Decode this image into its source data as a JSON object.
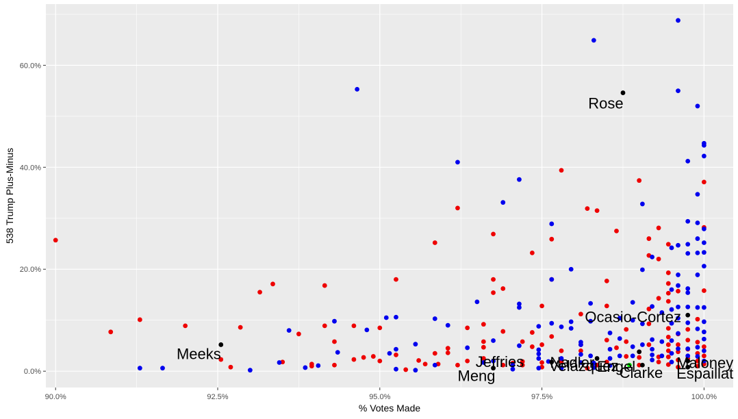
{
  "chart_data": {
    "type": "scatter",
    "xlabel": "% Votes Made",
    "ylabel": "538 Trump Plus-Minus",
    "xlim": [
      0.8985,
      1.0045
    ],
    "ylim": [
      -0.032,
      0.72
    ],
    "x_ticks": [
      0.9,
      0.925,
      0.95,
      0.975,
      1.0
    ],
    "x_tick_labels": [
      "90.0%",
      "92.5%",
      "95.0%",
      "97.5%",
      "100.0%"
    ],
    "y_ticks": [
      0.0,
      0.2,
      0.4,
      0.6
    ],
    "y_tick_labels": [
      "0.0%",
      "20.0%",
      "40.0%",
      "60.0%"
    ],
    "grid": true,
    "colors": {
      "panel": "#ebebeb",
      "grid": "#ffffff",
      "red": "#ee0000",
      "blue": "#0000ee",
      "black": "#000000",
      "green": "#00ee00"
    },
    "series": [
      {
        "color": "red",
        "points": [
          [
            0.9,
            0.257
          ],
          [
            0.9085,
            0.077
          ],
          [
            0.913,
            0.101
          ],
          [
            0.92,
            0.089
          ],
          [
            0.9255,
            0.023
          ],
          [
            0.927,
            0.008
          ],
          [
            0.9285,
            0.086
          ],
          [
            0.9315,
            0.155
          ],
          [
            0.9335,
            0.171
          ],
          [
            0.935,
            0.018
          ],
          [
            0.9375,
            0.073
          ],
          [
            0.9395,
            0.014
          ],
          [
            0.9395,
            0.01
          ],
          [
            0.9415,
            0.168
          ],
          [
            0.9415,
            0.089
          ],
          [
            0.943,
            0.058
          ],
          [
            0.943,
            0.012
          ],
          [
            0.946,
            0.089
          ],
          [
            0.946,
            0.023
          ],
          [
            0.9475,
            0.027
          ],
          [
            0.949,
            0.029
          ],
          [
            0.95,
            0.085
          ],
          [
            0.95,
            0.02
          ],
          [
            0.9525,
            0.18
          ],
          [
            0.9525,
            0.032
          ],
          [
            0.954,
            0.003
          ],
          [
            0.956,
            0.021
          ],
          [
            0.957,
            0.014
          ],
          [
            0.9585,
            0.252
          ],
          [
            0.9585,
            0.035
          ],
          [
            0.959,
            0.014
          ],
          [
            0.9605,
            0.045
          ],
          [
            0.9605,
            0.036
          ],
          [
            0.962,
            0.32
          ],
          [
            0.962,
            0.012
          ],
          [
            0.9635,
            0.085
          ],
          [
            0.9635,
            0.02
          ],
          [
            0.966,
            0.058
          ],
          [
            0.966,
            0.047
          ],
          [
            0.966,
            0.025
          ],
          [
            0.966,
            0.092
          ],
          [
            0.9675,
            0.269
          ],
          [
            0.9675,
            0.18
          ],
          [
            0.9675,
            0.154
          ],
          [
            0.969,
            0.162
          ],
          [
            0.969,
            0.078
          ],
          [
            0.969,
            0.012
          ],
          [
            0.9705,
            0.016
          ],
          [
            0.972,
            0.058
          ],
          [
            0.972,
            0.019
          ],
          [
            0.972,
            0.012
          ],
          [
            0.9735,
            0.232
          ],
          [
            0.9735,
            0.076
          ],
          [
            0.9735,
            0.048
          ],
          [
            0.975,
            0.128
          ],
          [
            0.975,
            0.052
          ],
          [
            0.975,
            0.017
          ],
          [
            0.975,
            0.008
          ],
          [
            0.9765,
            0.259
          ],
          [
            0.9765,
            0.18
          ],
          [
            0.9765,
            0.068
          ],
          [
            0.978,
            0.394
          ],
          [
            0.978,
            0.04
          ],
          [
            0.978,
            0.019
          ],
          [
            0.981,
            0.112
          ],
          [
            0.981,
            0.052
          ],
          [
            0.981,
            0.04
          ],
          [
            0.982,
            0.319
          ],
          [
            0.982,
            0.006
          ],
          [
            0.9835,
            0.315
          ],
          [
            0.9835,
            0.012
          ],
          [
            0.985,
            0.177
          ],
          [
            0.985,
            0.128
          ],
          [
            0.985,
            0.061
          ],
          [
            0.985,
            0.018
          ],
          [
            0.9865,
            0.275
          ],
          [
            0.9865,
            0.046
          ],
          [
            0.988,
            0.082
          ],
          [
            0.988,
            0.058
          ],
          [
            0.988,
            0.029
          ],
          [
            0.99,
            0.374
          ],
          [
            0.99,
            0.038
          ],
          [
            0.99,
            0.027
          ],
          [
            0.99,
            0.012
          ],
          [
            0.9915,
            0.26
          ],
          [
            0.9915,
            0.227
          ],
          [
            0.9915,
            0.122
          ],
          [
            0.9915,
            0.093
          ],
          [
            0.9915,
            0.052
          ],
          [
            0.993,
            0.281
          ],
          [
            0.993,
            0.22
          ],
          [
            0.993,
            0.143
          ],
          [
            0.993,
            0.028
          ],
          [
            0.993,
            0.018
          ],
          [
            0.9945,
            0.249
          ],
          [
            0.9945,
            0.193
          ],
          [
            0.9945,
            0.172
          ],
          [
            0.9945,
            0.153
          ],
          [
            0.9945,
            0.137
          ],
          [
            0.9945,
            0.084
          ],
          [
            0.9945,
            0.067
          ],
          [
            0.9945,
            0.052
          ],
          [
            0.9945,
            0.04
          ],
          [
            0.9945,
            0.028
          ],
          [
            0.9945,
            0.013
          ],
          [
            0.996,
            0.157
          ],
          [
            0.996,
            0.073
          ],
          [
            0.996,
            0.052
          ],
          [
            0.996,
            0.038
          ],
          [
            0.996,
            0.022
          ],
          [
            0.996,
            0.008
          ],
          [
            0.9975,
            0.082
          ],
          [
            0.9975,
            0.061
          ],
          [
            0.9975,
            0.043
          ],
          [
            0.9975,
            0.025
          ],
          [
            0.999,
            0.102
          ],
          [
            0.999,
            0.057
          ],
          [
            0.999,
            0.035
          ],
          [
            0.999,
            0.02
          ],
          [
            0.999,
            0.01
          ],
          [
            1.0,
            0.371
          ],
          [
            1.0,
            0.282
          ],
          [
            1.0,
            0.158
          ],
          [
            1.0,
            0.048
          ],
          [
            1.0,
            0.03
          ],
          [
            1.0,
            0.014
          ]
        ]
      },
      {
        "color": "blue",
        "points": [
          [
            0.913,
            0.006
          ],
          [
            0.9165,
            0.006
          ],
          [
            0.93,
            0.002
          ],
          [
            0.9345,
            0.017
          ],
          [
            0.936,
            0.08
          ],
          [
            0.9385,
            0.007
          ],
          [
            0.9405,
            0.011
          ],
          [
            0.943,
            0.098
          ],
          [
            0.9435,
            0.037
          ],
          [
            0.9465,
            0.553
          ],
          [
            0.948,
            0.081
          ],
          [
            0.951,
            0.105
          ],
          [
            0.9515,
            0.035
          ],
          [
            0.9525,
            0.106
          ],
          [
            0.9525,
            0.043
          ],
          [
            0.9525,
            0.004
          ],
          [
            0.9555,
            0.053
          ],
          [
            0.9555,
            0.002
          ],
          [
            0.9585,
            0.103
          ],
          [
            0.9585,
            0.012
          ],
          [
            0.9605,
            0.09
          ],
          [
            0.962,
            0.41
          ],
          [
            0.9635,
            0.046
          ],
          [
            0.965,
            0.136
          ],
          [
            0.966,
            0.017
          ],
          [
            0.9675,
            0.06
          ],
          [
            0.9675,
            0.02
          ],
          [
            0.969,
            0.331
          ],
          [
            0.9705,
            0.012
          ],
          [
            0.9705,
            0.004
          ],
          [
            0.9715,
            0.376
          ],
          [
            0.9715,
            0.132
          ],
          [
            0.9715,
            0.125
          ],
          [
            0.9715,
            0.05
          ],
          [
            0.9745,
            0.088
          ],
          [
            0.9745,
            0.042
          ],
          [
            0.9745,
            0.034
          ],
          [
            0.9745,
            0.025
          ],
          [
            0.9745,
            0.006
          ],
          [
            0.9765,
            0.289
          ],
          [
            0.9765,
            0.18
          ],
          [
            0.9765,
            0.094
          ],
          [
            0.976,
            0.019
          ],
          [
            0.978,
            0.087
          ],
          [
            0.978,
            0.025
          ],
          [
            0.978,
            0.006
          ],
          [
            0.9795,
            0.2
          ],
          [
            0.9795,
            0.097
          ],
          [
            0.9795,
            0.084
          ],
          [
            0.981,
            0.057
          ],
          [
            0.981,
            0.052
          ],
          [
            0.981,
            0.033
          ],
          [
            0.981,
            0.017
          ],
          [
            0.9825,
            0.133
          ],
          [
            0.9825,
            0.098
          ],
          [
            0.9825,
            0.03
          ],
          [
            0.983,
            0.649
          ],
          [
            0.983,
            0.016
          ],
          [
            0.983,
            0.007
          ],
          [
            0.9855,
            0.075
          ],
          [
            0.9855,
            0.043
          ],
          [
            0.9855,
            0.025
          ],
          [
            0.9855,
            0.011
          ],
          [
            0.987,
            0.104
          ],
          [
            0.987,
            0.064
          ],
          [
            0.987,
            0.03
          ],
          [
            0.989,
            0.135
          ],
          [
            0.989,
            0.1
          ],
          [
            0.989,
            0.048
          ],
          [
            0.989,
            0.03
          ],
          [
            0.9905,
            0.328
          ],
          [
            0.9905,
            0.199
          ],
          [
            0.9905,
            0.093
          ],
          [
            0.9905,
            0.052
          ],
          [
            0.992,
            0.224
          ],
          [
            0.992,
            0.127
          ],
          [
            0.992,
            0.062
          ],
          [
            0.992,
            0.043
          ],
          [
            0.992,
            0.032
          ],
          [
            0.992,
            0.022
          ],
          [
            0.9935,
            0.115
          ],
          [
            0.9935,
            0.058
          ],
          [
            0.9935,
            0.03
          ],
          [
            0.995,
            0.242
          ],
          [
            0.995,
            0.16
          ],
          [
            0.995,
            0.121
          ],
          [
            0.995,
            0.094
          ],
          [
            0.995,
            0.06
          ],
          [
            0.995,
            0.035
          ],
          [
            0.995,
            0.018
          ],
          [
            0.996,
            0.688
          ],
          [
            0.996,
            0.55
          ],
          [
            0.996,
            0.247
          ],
          [
            0.996,
            0.189
          ],
          [
            0.996,
            0.168
          ],
          [
            0.996,
            0.126
          ],
          [
            0.996,
            0.104
          ],
          [
            0.996,
            0.074
          ],
          [
            0.996,
            0.044
          ],
          [
            0.9975,
            0.412
          ],
          [
            0.9975,
            0.294
          ],
          [
            0.9975,
            0.249
          ],
          [
            0.9975,
            0.231
          ],
          [
            0.9975,
            0.162
          ],
          [
            0.9975,
            0.154
          ],
          [
            0.9975,
            0.126
          ],
          [
            0.9975,
            0.095
          ],
          [
            0.9975,
            0.044
          ],
          [
            0.9975,
            0.03
          ],
          [
            0.999,
            0.52
          ],
          [
            0.999,
            0.347
          ],
          [
            0.999,
            0.291
          ],
          [
            0.999,
            0.26
          ],
          [
            0.999,
            0.232
          ],
          [
            0.999,
            0.189
          ],
          [
            0.999,
            0.125
          ],
          [
            0.999,
            0.083
          ],
          [
            0.999,
            0.047
          ],
          [
            0.999,
            0.029
          ],
          [
            1.0,
            0.447
          ],
          [
            1.0,
            0.443
          ],
          [
            1.0,
            0.422
          ],
          [
            1.0,
            0.279
          ],
          [
            1.0,
            0.252
          ],
          [
            1.0,
            0.233
          ],
          [
            1.0,
            0.206
          ],
          [
            1.0,
            0.125
          ],
          [
            1.0,
            0.097
          ],
          [
            1.0,
            0.077
          ],
          [
            1.0,
            0.063
          ],
          [
            1.0,
            0.04
          ],
          [
            1.0,
            0.02
          ]
        ]
      },
      {
        "color": "black",
        "points": [
          [
            0.9255,
            0.052
          ],
          [
            0.9675,
            0.006
          ],
          [
            0.9765,
            0.018
          ],
          [
            0.9835,
            0.025
          ],
          [
            0.9875,
            0.546
          ],
          [
            0.99,
            0.038
          ],
          [
            0.9905,
            0.012
          ],
          [
            0.9975,
            0.11
          ],
          [
            0.9975,
            0.02
          ],
          [
            0.9975,
            0.008
          ]
        ]
      },
      {
        "color": "green",
        "points": [
          [
            0.9885,
            0.012
          ]
        ]
      }
    ],
    "labels": [
      {
        "text": "Meeks",
        "x": 0.9255,
        "y": 0.052
      },
      {
        "text": "Meng",
        "x": 0.9675,
        "y": 0.006
      },
      {
        "text": "Jeffries",
        "x": 0.9685,
        "y": 0.008
      },
      {
        "text": "Nadler",
        "x": 0.9765,
        "y": 0.018
      },
      {
        "text": "Velázquez",
        "x": 0.9765,
        "y": 0.018
      },
      {
        "text": "Engel",
        "x": 0.9875,
        "y": 0.012
      },
      {
        "text": "Clarke",
        "x": 0.9885,
        "y": 0.012
      },
      {
        "text": "Rose",
        "x": 0.9875,
        "y": 0.546
      },
      {
        "text": "Ocasio-Cortez",
        "x": 0.9975,
        "y": 0.11
      },
      {
        "text": "Maloney",
        "x": 0.9975,
        "y": 0.02
      },
      {
        "text": "Espaillat",
        "x": 0.9975,
        "y": 0.008
      }
    ]
  }
}
